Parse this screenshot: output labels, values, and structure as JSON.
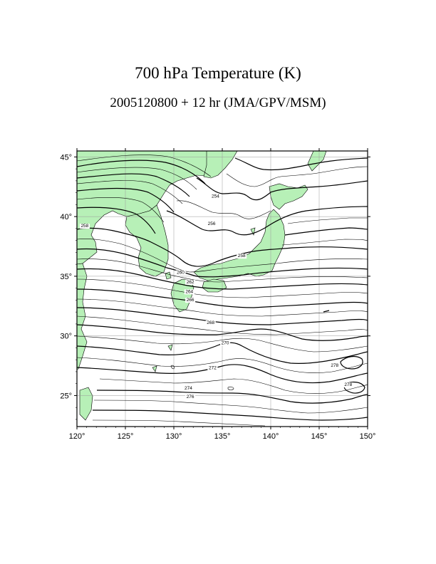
{
  "title": "700 hPa Temperature (K)",
  "subtitle": "2005120800 + 12 hr (JMA/GPV/MSM)",
  "map": {
    "lon_range": [
      120,
      150
    ],
    "lat_range": [
      22.4,
      45.5
    ],
    "lon_ticks": [
      120,
      125,
      130,
      135,
      140,
      145,
      150
    ],
    "lat_ticks": [
      25,
      30,
      35,
      40,
      45
    ],
    "lon_tick_labels": [
      "120°",
      "125°",
      "130°",
      "135°",
      "140°",
      "145°",
      "150°"
    ],
    "lat_tick_labels": [
      "25°",
      "30°",
      "35°",
      "40°",
      "45°"
    ],
    "grid_interval_deg": 5,
    "land_color": "#b7f0b7",
    "contour_color": "#000000",
    "contour_interval_K": 1,
    "bold_contour_interval_K": 2
  },
  "contour_labels": [
    {
      "text": "254",
      "lon": 134.3,
      "lat": 41.6
    },
    {
      "text": "256",
      "lon": 133.9,
      "lat": 39.3
    },
    {
      "text": "258",
      "lon": 120.8,
      "lat": 39.1
    },
    {
      "text": "258",
      "lon": 137.0,
      "lat": 36.6
    },
    {
      "text": "260",
      "lon": 130.7,
      "lat": 35.2
    },
    {
      "text": "262",
      "lon": 131.7,
      "lat": 34.4
    },
    {
      "text": "264",
      "lon": 131.6,
      "lat": 33.6
    },
    {
      "text": "266",
      "lon": 131.7,
      "lat": 32.9
    },
    {
      "text": "268",
      "lon": 133.8,
      "lat": 31.0
    },
    {
      "text": "270",
      "lon": 135.3,
      "lat": 29.3
    },
    {
      "text": "272",
      "lon": 134.0,
      "lat": 27.2
    },
    {
      "text": "274",
      "lon": 131.5,
      "lat": 25.5
    },
    {
      "text": "276",
      "lon": 131.7,
      "lat": 24.8
    },
    {
      "text": "278",
      "lon": 146.6,
      "lat": 27.4
    },
    {
      "text": "278",
      "lon": 148.0,
      "lat": 25.8
    }
  ]
}
